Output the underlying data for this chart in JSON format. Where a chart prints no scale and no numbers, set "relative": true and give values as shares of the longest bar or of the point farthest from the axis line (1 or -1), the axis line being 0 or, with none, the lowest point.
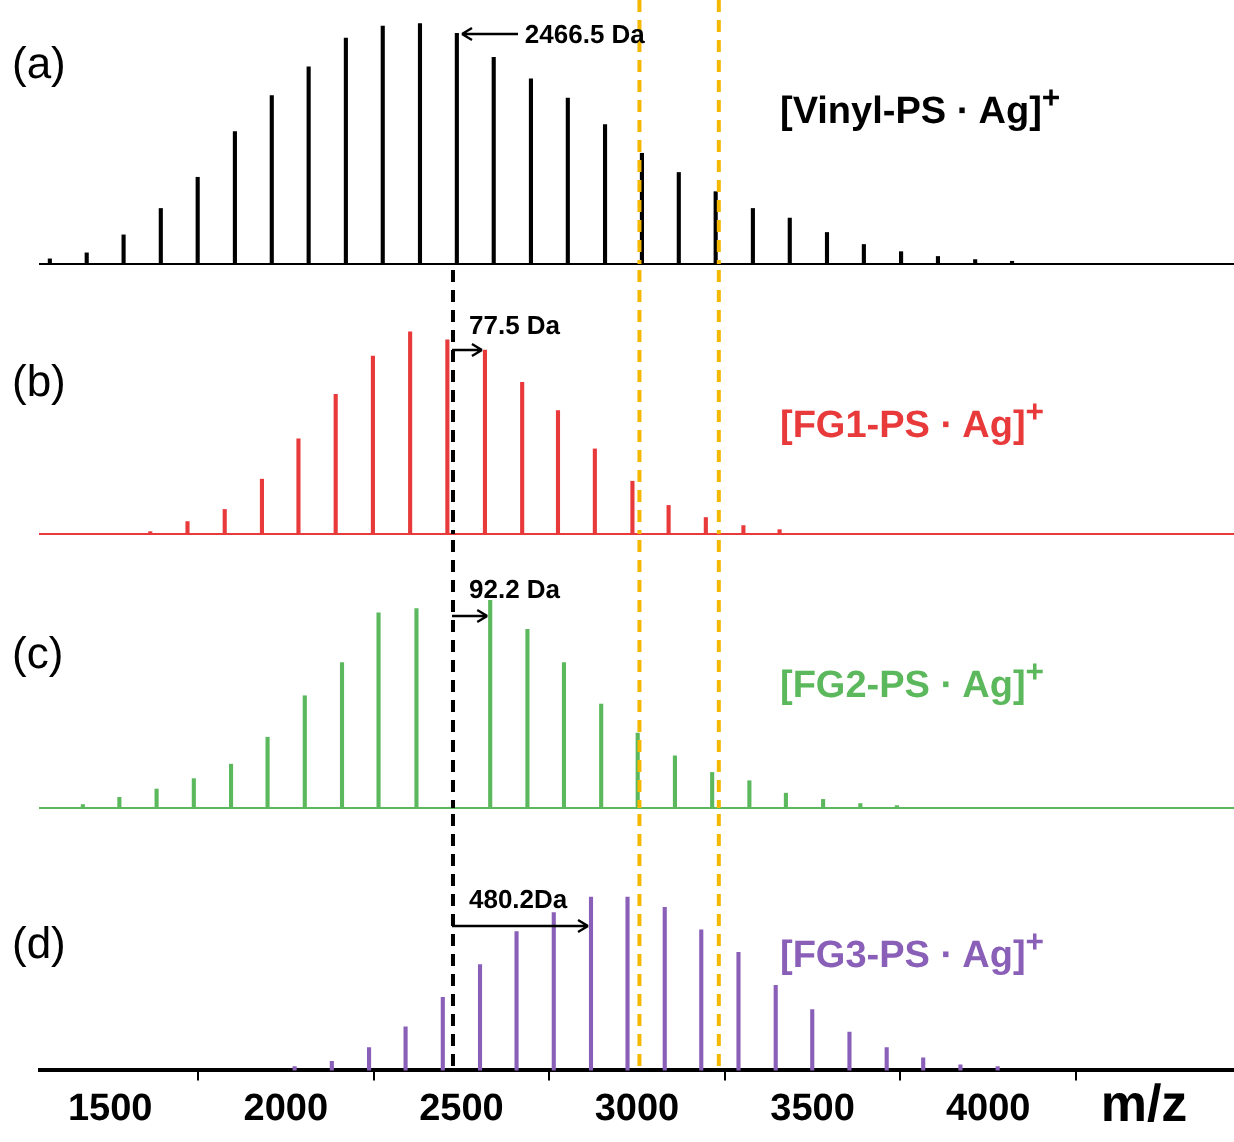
{
  "chart_data": [
    {
      "type": "bar",
      "relative": true,
      "xlim": [
        1300,
        4700
      ],
      "tick_labels": false,
      "x": [
        1328,
        1433,
        1538,
        1644,
        1749,
        1855,
        1960,
        2065,
        2171,
        2276,
        2382,
        2487,
        2592,
        2698,
        2803,
        2909,
        3014,
        3119,
        3224,
        3330,
        3435,
        3541,
        3646,
        3752,
        3857,
        3963,
        4068
      ],
      "series": [
        {
          "name": "[Vinyl-PS · Ag]$^{+}$",
          "color": "#000000",
          "values": [
            0.02,
            0.045,
            0.12,
            0.23,
            0.36,
            0.55,
            0.7,
            0.82,
            0.94,
            0.99,
            1,
            0.96,
            0.86,
            0.77,
            0.69,
            0.58,
            0.46,
            0.38,
            0.3,
            0.23,
            0.19,
            0.13,
            0.08,
            0.05,
            0.03,
            0.017,
            0.01
          ]
        }
      ],
      "annotations": [
        "(a)",
        {
          "text": "2466.5 Da",
          "x": 2487,
          "y": 0.96
        }
      ],
      "ref_lines": [
        {
          "axis": "x",
          "value": 3007,
          "color": "#f5b800",
          "line_style": "dashed"
        },
        {
          "axis": "x",
          "value": 3233,
          "color": "#f5b800",
          "line_style": "dashed"
        }
      ]
    },
    {
      "type": "bar",
      "relative": true,
      "xlim": [
        1300,
        4700
      ],
      "tick_labels": false,
      "x": [
        1614,
        1720,
        1826,
        1932,
        2036,
        2142,
        2248,
        2354,
        2460,
        2567,
        2673,
        2775,
        2880,
        2987,
        3090,
        3196,
        3303,
        3406
      ],
      "series": [
        {
          "name": "[FG1-PS · Ag]$^{+}$",
          "color": "#e8393b",
          "values": [
            0.01,
            0.06,
            0.12,
            0.27,
            0.47,
            0.69,
            0.88,
            1,
            0.96,
            0.91,
            0.75,
            0.61,
            0.42,
            0.26,
            0.14,
            0.08,
            0.04,
            0.02
          ]
        }
      ],
      "annotations": [
        "(b)",
        {
          "text": "77.5 Da",
          "x": 2567,
          "y": 0.91
        }
      ],
      "ref_lines": [
        {
          "axis": "x",
          "value": 2476,
          "color": "#000000",
          "line_style": "dashed"
        },
        {
          "axis": "x",
          "value": 3007,
          "color": "#f5b800",
          "line_style": "dashed"
        },
        {
          "axis": "x",
          "value": 3233,
          "color": "#f5b800",
          "line_style": "dashed"
        }
      ]
    },
    {
      "type": "bar",
      "relative": true,
      "xlim": [
        1300,
        4700
      ],
      "tick_labels": false,
      "x": [
        1422,
        1526,
        1632,
        1738,
        1844,
        1948,
        2054,
        2160,
        2264,
        2372,
        2476,
        2582,
        2688,
        2792,
        2898,
        3002,
        3108,
        3214,
        3320,
        3424,
        3530,
        3636,
        3740
      ],
      "series": [
        {
          "name": "[FG2-PS · Ag]$^{+}$",
          "color": "#5cb85c",
          "values": [
            0.015,
            0.05,
            0.09,
            0.14,
            0.21,
            0.34,
            0.54,
            0.7,
            0.94,
            0.96,
            null,
            1,
            0.86,
            0.7,
            0.5,
            0.36,
            0.25,
            0.17,
            0.13,
            0.07,
            0.04,
            0.02,
            0.01
          ]
        }
      ],
      "annotations": [
        "(c)",
        {
          "text": "92.2 Da",
          "x": 2582,
          "y": 0.93
        }
      ],
      "ref_lines": [
        {
          "axis": "x",
          "value": 2476,
          "color": "#000000",
          "line_style": "dashed"
        },
        {
          "axis": "x",
          "value": 3007,
          "color": "#f5b800",
          "line_style": "dashed"
        },
        {
          "axis": "x",
          "value": 3233,
          "color": "#f5b800",
          "line_style": "dashed"
        }
      ]
    },
    {
      "type": "bar",
      "relative": true,
      "xlim": [
        1300,
        4700
      ],
      "xticks": [
        1500,
        2000,
        2500,
        3000,
        3500,
        4000
      ],
      "xlabel": "m/z",
      "x": [
        2025,
        2131,
        2237,
        2341,
        2447,
        2553,
        2657,
        2763,
        2869,
        2973,
        3079,
        3183,
        3289,
        3395,
        3499,
        3605,
        3711,
        3815,
        3921,
        4027
      ],
      "series": [
        {
          "name": "[FG3-PS · Ag]$^{+}$",
          "color": "#8a5fb8",
          "values": [
            0.02,
            0.05,
            0.13,
            0.25,
            0.42,
            0.61,
            0.8,
            0.91,
            1,
            1,
            0.94,
            0.81,
            0.68,
            0.49,
            0.35,
            0.22,
            0.13,
            0.07,
            0.03,
            0.02
          ]
        }
      ],
      "annotations": [
        "(d)",
        {
          "text": "480.2Da",
          "x": 2869,
          "y": 0.84
        }
      ],
      "ref_lines": [
        {
          "axis": "x",
          "value": 2476,
          "color": "#000000",
          "line_style": "dashed"
        },
        {
          "axis": "x",
          "value": 3007,
          "color": "#f5b800",
          "line_style": "dashed"
        },
        {
          "axis": "x",
          "value": 3233,
          "color": "#f5b800",
          "line_style": "dashed"
        }
      ]
    }
  ]
}
